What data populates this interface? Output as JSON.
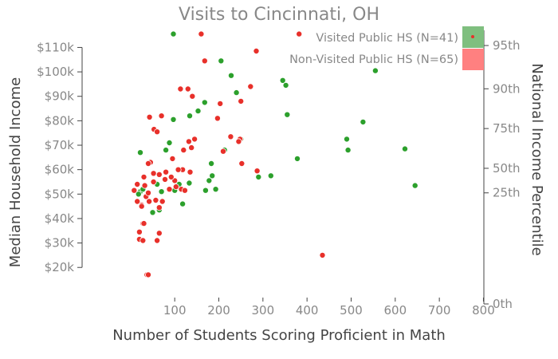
{
  "chart_data": {
    "type": "scatter",
    "title": "Visits to Cincinnati, OH",
    "xlabel": "Number of Students Scoring Proficient in Math",
    "ylabel": "Median Household Income",
    "y2label": "National Income Percentile",
    "xlim": [
      -110,
      810
    ],
    "ylim": [
      8000,
      117000
    ],
    "x_ticks": [
      {
        "value": 100,
        "label": "100"
      },
      {
        "value": 200,
        "label": "200"
      },
      {
        "value": 300,
        "label": "300"
      },
      {
        "value": 400,
        "label": "400"
      },
      {
        "value": 500,
        "label": "500"
      },
      {
        "value": 600,
        "label": "600"
      },
      {
        "value": 700,
        "label": "700"
      },
      {
        "value": 800,
        "label": "800"
      }
    ],
    "y_ticks": [
      {
        "value": 20000,
        "label": "$20k"
      },
      {
        "value": 30000,
        "label": "$30k"
      },
      {
        "value": 40000,
        "label": "$40k"
      },
      {
        "value": 50000,
        "label": "$50k"
      },
      {
        "value": 60000,
        "label": "$60k"
      },
      {
        "value": 70000,
        "label": "$70k"
      },
      {
        "value": 80000,
        "label": "$80k"
      },
      {
        "value": 90000,
        "label": "$90k"
      },
      {
        "value": 100000,
        "label": "$100k"
      },
      {
        "value": 110000,
        "label": "$110k"
      }
    ],
    "y2_ticks": [
      {
        "value": 0,
        "label": "0th"
      },
      {
        "value": 47500,
        "label": "25th"
      },
      {
        "value": 58000,
        "label": "50th"
      },
      {
        "value": 75000,
        "label": "75th"
      },
      {
        "value": 92000,
        "label": "90th"
      },
      {
        "value": 110500,
        "label": "95th"
      }
    ],
    "legend_position": "top-right",
    "colors": {
      "visited": "#2ca02c",
      "non_visited": "#e8302a",
      "marker_outline": "#ffffff",
      "axis": "#444444"
    },
    "series": [
      {
        "name": "Visited Public HS (N=41)",
        "key": "visited",
        "points": [
          [
            97,
            115500
          ],
          [
            205,
            104500
          ],
          [
            228,
            98500
          ],
          [
            240,
            91500
          ],
          [
            168,
            87500
          ],
          [
            345,
            96500
          ],
          [
            352,
            94500
          ],
          [
            555,
            100500
          ],
          [
            355,
            82500
          ],
          [
            527,
            79500
          ],
          [
            134,
            82000
          ],
          [
            97,
            80500
          ],
          [
            153,
            84000
          ],
          [
            490,
            72500
          ],
          [
            493,
            68000
          ],
          [
            622,
            68500
          ],
          [
            645,
            53500
          ],
          [
            88,
            71000
          ],
          [
            80,
            68000
          ],
          [
            22,
            67000
          ],
          [
            213,
            68000
          ],
          [
            250,
            72500
          ],
          [
            378,
            64500
          ],
          [
            183,
            62500
          ],
          [
            290,
            57000
          ],
          [
            318,
            57500
          ],
          [
            22,
            51000
          ],
          [
            18,
            50000
          ],
          [
            28,
            52000
          ],
          [
            50,
            42500
          ],
          [
            65,
            43500
          ],
          [
            60,
            54000
          ],
          [
            70,
            51000
          ],
          [
            100,
            51500
          ],
          [
            110,
            54000
          ],
          [
            118,
            46000
          ],
          [
            133,
            54500
          ],
          [
            170,
            51500
          ],
          [
            185,
            57500
          ],
          [
            193,
            52000
          ],
          [
            178,
            55500
          ]
        ]
      },
      {
        "name": "Non-Visited Public HS (N=65)",
        "key": "non_visited",
        "points": [
          [
            160,
            115500
          ],
          [
            382,
            115500
          ],
          [
            168,
            104500
          ],
          [
            285,
            108500
          ],
          [
            272,
            94000
          ],
          [
            113,
            93000
          ],
          [
            130,
            93000
          ],
          [
            140,
            90000
          ],
          [
            203,
            87000
          ],
          [
            250,
            88000
          ],
          [
            43,
            81500
          ],
          [
            70,
            82000
          ],
          [
            53,
            76500
          ],
          [
            60,
            75500
          ],
          [
            197,
            81000
          ],
          [
            145,
            72500
          ],
          [
            138,
            69000
          ],
          [
            132,
            71500
          ],
          [
            120,
            68000
          ],
          [
            227,
            73500
          ],
          [
            248,
            72500
          ],
          [
            245,
            71500
          ],
          [
            252,
            62500
          ],
          [
            210,
            67500
          ],
          [
            287,
            59500
          ],
          [
            95,
            64500
          ],
          [
            80,
            59000
          ],
          [
            45,
            63000
          ],
          [
            40,
            62500
          ],
          [
            30,
            57000
          ],
          [
            52,
            58500
          ],
          [
            65,
            58000
          ],
          [
            78,
            56000
          ],
          [
            118,
            60000
          ],
          [
            135,
            59000
          ],
          [
            8,
            51500
          ],
          [
            15,
            54000
          ],
          [
            32,
            53500
          ],
          [
            35,
            49000
          ],
          [
            40,
            50500
          ],
          [
            52,
            55000
          ],
          [
            65,
            44500
          ],
          [
            100,
            55500
          ],
          [
            103,
            53000
          ],
          [
            115,
            52000
          ],
          [
            123,
            51500
          ],
          [
            15,
            47000
          ],
          [
            25,
            45500
          ],
          [
            28,
            38000
          ],
          [
            20,
            34500
          ],
          [
            20,
            31500
          ],
          [
            28,
            31000
          ],
          [
            65,
            34000
          ],
          [
            60,
            31000
          ],
          [
            37,
            17000
          ],
          [
            40,
            17000
          ],
          [
            435,
            25000
          ],
          [
            88,
            52000
          ],
          [
            57,
            47500
          ],
          [
            72,
            47000
          ],
          [
            92,
            57000
          ],
          [
            25,
            45000
          ],
          [
            42,
            47000
          ],
          [
            30,
            38000
          ],
          [
            108,
            60000
          ]
        ]
      }
    ]
  }
}
